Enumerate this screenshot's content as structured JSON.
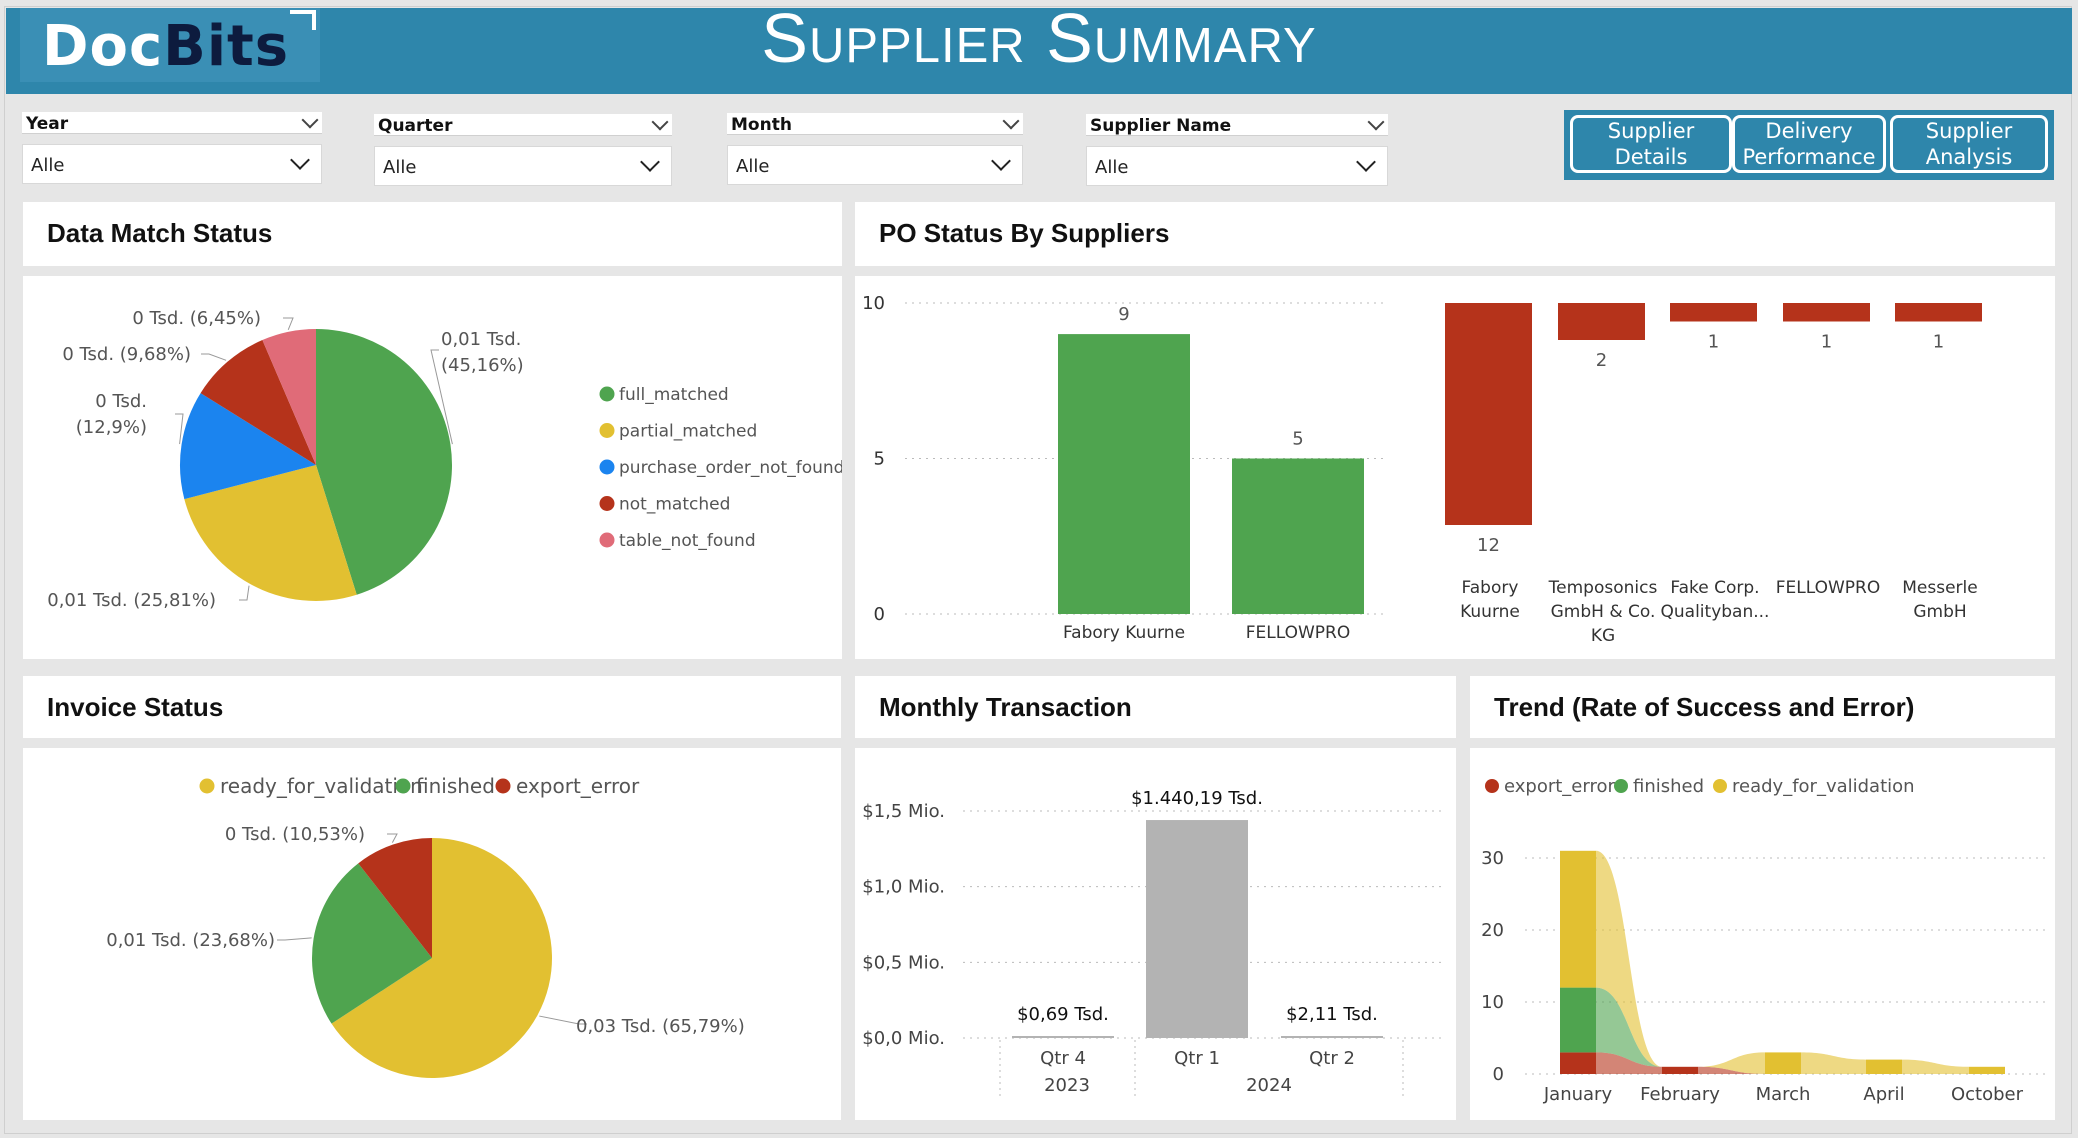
{
  "header": {
    "logo_doc": "Doc",
    "logo_bits": "Bits",
    "title": "Supplier Summary"
  },
  "filters": [
    {
      "label": "Year",
      "value": "Alle"
    },
    {
      "label": "Quarter",
      "value": "Alle"
    },
    {
      "label": "Month",
      "value": "Alle"
    },
    {
      "label": "Supplier Name",
      "value": "Alle"
    }
  ],
  "nav": [
    {
      "label": "Supplier Details"
    },
    {
      "label": "Delivery Performance"
    },
    {
      "label": "Supplier Analysis"
    }
  ],
  "panels": {
    "data_match": "Data Match Status",
    "po_status": "PO Status By Suppliers",
    "invoice_status": "Invoice Status",
    "monthly": "Monthly Transaction",
    "trend": "Trend (Rate of Success and Error)"
  },
  "colors": {
    "header": "#2e86ab",
    "green": "#4fa44f",
    "yellow": "#e2c031",
    "blue": "#1b84ef",
    "red": "#b5331b",
    "pink": "#e06b78",
    "grey": "#b3b3b3"
  },
  "chart_data": [
    {
      "id": "data_match_status",
      "type": "pie",
      "slices": [
        {
          "name": "full_matched",
          "value": 45.16,
          "label": "0,01 Tsd. (45,16%)",
          "color": "#4fa44f"
        },
        {
          "name": "partial_matched",
          "value": 25.81,
          "label": "0,01 Tsd. (25,81%)",
          "color": "#e2c031"
        },
        {
          "name": "purchase_order_not_found",
          "value": 12.9,
          "label": "0 Tsd. (12,9%)",
          "color": "#1b84ef"
        },
        {
          "name": "not_matched",
          "value": 9.68,
          "label": "0 Tsd. (9,68%)",
          "color": "#b5331b"
        },
        {
          "name": "table_not_found",
          "value": 6.45,
          "label": "0 Tsd. (6,45%)",
          "color": "#e06b78"
        }
      ],
      "legend": [
        "full_matched",
        "partial_matched",
        "purchase_order_not_found",
        "not_matched",
        "table_not_found"
      ]
    },
    {
      "id": "po_status_green",
      "type": "bar",
      "categories": [
        "Fabory Kuurne",
        "FELLOWPRO"
      ],
      "values": [
        9,
        5
      ],
      "ylim": [
        0,
        10
      ],
      "yticks": [
        "0",
        "5",
        "10"
      ],
      "color": "#4fa44f"
    },
    {
      "id": "po_status_red",
      "type": "bar",
      "categories": [
        {
          "lines": [
            "Fabory",
            "Kuurne"
          ]
        },
        {
          "lines": [
            "Temposonics",
            "GmbH & Co.",
            "KG"
          ]
        },
        {
          "lines": [
            "Fake Corp.",
            "Qualityban..."
          ]
        },
        {
          "lines": [
            "FELLOWPRO"
          ]
        },
        {
          "lines": [
            "Messerle",
            "GmbH"
          ]
        }
      ],
      "values": [
        12,
        2,
        1,
        1,
        1
      ],
      "color": "#b5331b"
    },
    {
      "id": "invoice_status",
      "type": "pie",
      "legend": [
        "ready_for_validation",
        "finished",
        "export_error"
      ],
      "slices": [
        {
          "name": "ready_for_validation",
          "value": 65.79,
          "label": "0,03 Tsd. (65,79%)",
          "color": "#e2c031"
        },
        {
          "name": "finished",
          "value": 23.68,
          "label": "0,01 Tsd. (23,68%)",
          "color": "#4fa44f"
        },
        {
          "name": "export_error",
          "value": 10.53,
          "label": "0 Tsd. (10,53%)",
          "color": "#b5331b"
        }
      ]
    },
    {
      "id": "monthly_transaction",
      "type": "bar",
      "categories": [
        "Qtr 4",
        "Qtr 1",
        "Qtr 2"
      ],
      "groups": [
        "2023",
        "2024"
      ],
      "values": [
        0.69,
        1440.19,
        2.11
      ],
      "value_labels": [
        "$0,69 Tsd.",
        "$1.440,19 Tsd.",
        "$2,11 Tsd."
      ],
      "ylim": [
        0,
        1500
      ],
      "yticks": [
        "$0,0 Mio.",
        "$0,5 Mio.",
        "$1,0 Mio.",
        "$1,5 Mio."
      ],
      "color": "#b3b3b3"
    },
    {
      "id": "trend",
      "type": "bar",
      "stacked": true,
      "legend": [
        "export_error",
        "finished",
        "ready_for_validation"
      ],
      "categories": [
        "January",
        "February",
        "March",
        "April",
        "October"
      ],
      "ylim": [
        0,
        35
      ],
      "yticks": [
        "0",
        "10",
        "20",
        "30"
      ],
      "series": [
        {
          "name": "export_error",
          "values": [
            3,
            1,
            0,
            0,
            0
          ],
          "color": "#b5331b"
        },
        {
          "name": "finished",
          "values": [
            9,
            0,
            0,
            0,
            0
          ],
          "color": "#4fa44f"
        },
        {
          "name": "ready_for_validation",
          "values": [
            19,
            0,
            3,
            2,
            1
          ],
          "color": "#e2c031"
        }
      ]
    }
  ]
}
